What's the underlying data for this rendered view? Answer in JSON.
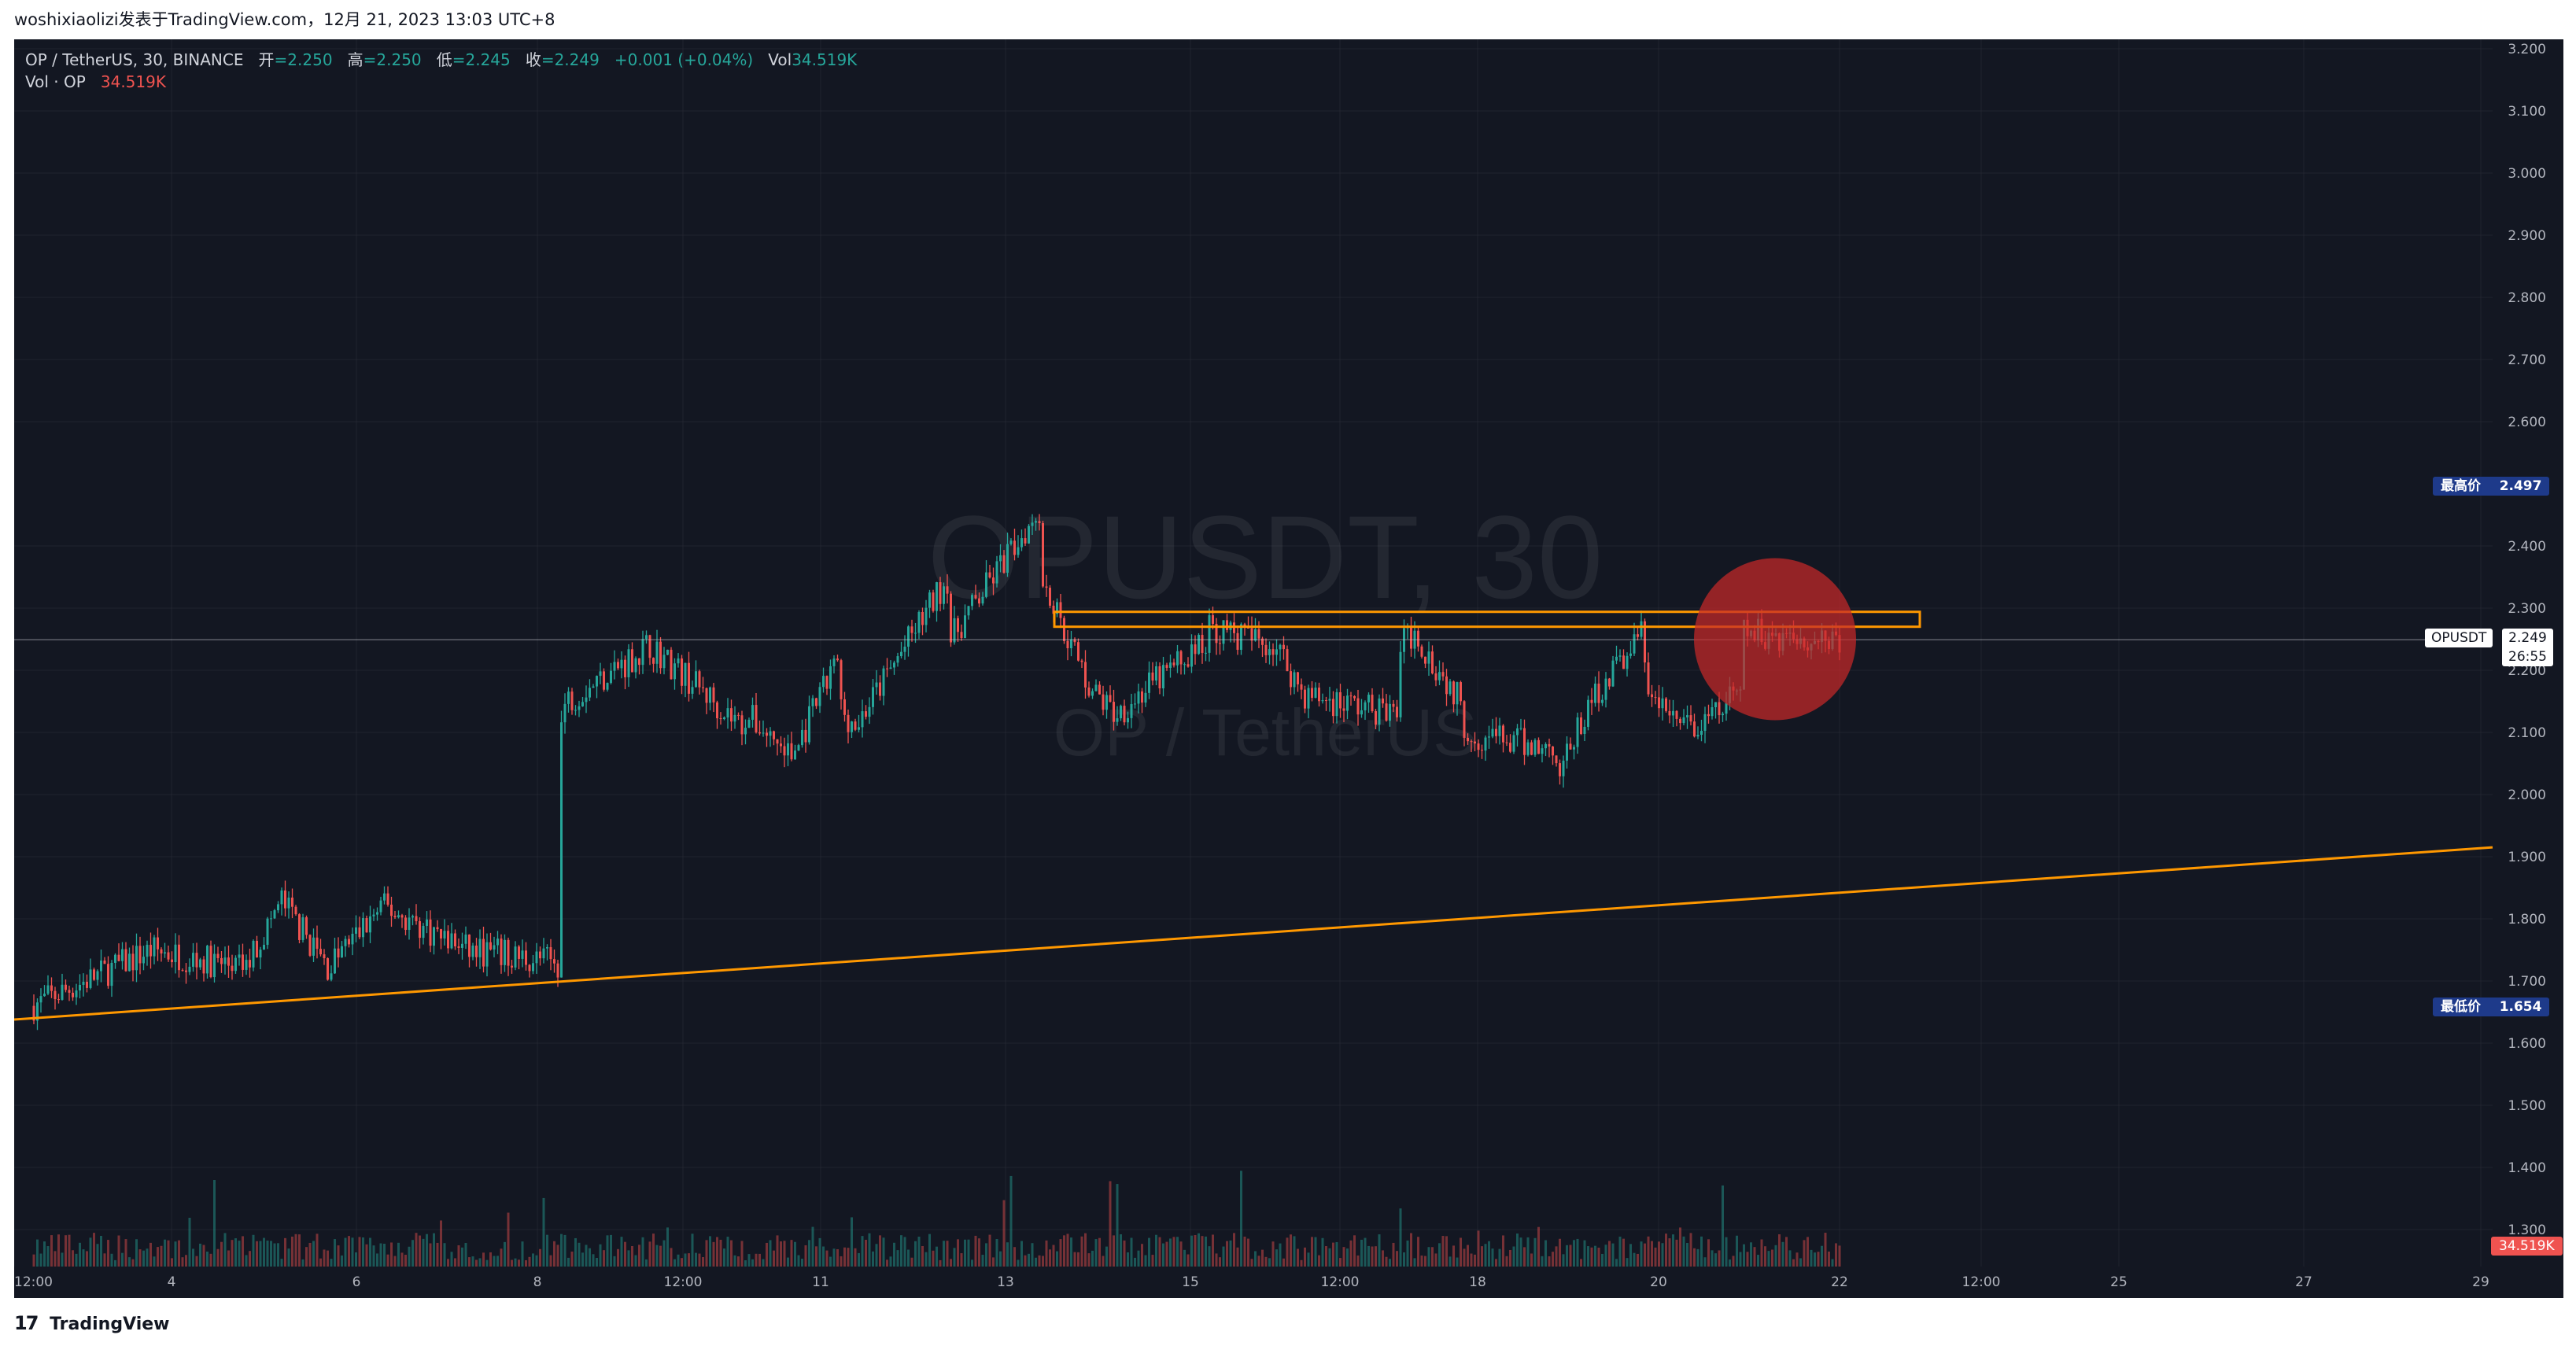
{
  "header": {
    "publisher": "woshixiaolizi发表于TradingView.com，12月 21, 2023 13:03 UTC+8"
  },
  "legend": {
    "symbol": "OP / TetherUS, 30, BINANCE",
    "open_label": "开",
    "open": "=2.250",
    "high_label": "高",
    "high": "=2.250",
    "low_label": "低",
    "low": "=2.245",
    "close_label": "收",
    "close": "=2.249",
    "change": "+0.001 (+0.04%)",
    "vol_label": "Vol",
    "vol": "34.519K",
    "vol_indicator": "Vol · OP",
    "vol_indicator_value": "34.519K"
  },
  "watermark": {
    "symbol": "OPUSDT, 30",
    "name": "OP / TetherUS"
  },
  "price_axis": {
    "ticks": [
      "3.200",
      "3.100",
      "3.000",
      "2.900",
      "2.800",
      "2.700",
      "2.600",
      "2.400",
      "2.300",
      "2.200",
      "2.100",
      "2.000",
      "1.900",
      "1.800",
      "1.700",
      "1.600",
      "1.500",
      "1.400",
      "1.300"
    ],
    "high_label": "最高价",
    "high_value": "2.497",
    "low_label": "最低价",
    "low_value": "1.654",
    "current_symbol": "OPUSDT",
    "current_price": "2.249",
    "countdown": "26:55",
    "volume_tag": "34.519K"
  },
  "time_axis": {
    "ticks": [
      "12:00",
      "4",
      "6",
      "8",
      "12:00",
      "11",
      "13",
      "15",
      "12:00",
      "18",
      "20",
      "22",
      "12:00",
      "25",
      "27",
      "29"
    ]
  },
  "footer": {
    "logo": "17",
    "brand": "TradingView"
  },
  "colors": {
    "background": "#131722",
    "up": "#26a69a",
    "down": "#ef5350",
    "drawing": "#ff9800",
    "highlight": "#c62828"
  },
  "chart_data": {
    "type": "candlestick",
    "symbol": "OP / TetherUS",
    "interval": "30",
    "exchange": "BINANCE",
    "ylim": [
      1.28,
      3.2
    ],
    "price_path": [
      {
        "x": "3 12:00",
        "y": 1.66
      },
      {
        "x": "4",
        "y": 1.75
      },
      {
        "x": "4 12:00",
        "y": 1.72
      },
      {
        "x": "5",
        "y": 1.83
      },
      {
        "x": "5 06:00",
        "y": 1.72
      },
      {
        "x": "6",
        "y": 1.74
      },
      {
        "x": "6 06:00",
        "y": 1.82
      },
      {
        "x": "7",
        "y": 1.75
      },
      {
        "x": "7 12:00",
        "y": 1.73
      },
      {
        "x": "8",
        "y": 1.76
      },
      {
        "x": "8 06:00",
        "y": 2.15
      },
      {
        "x": "9",
        "y": 2.24
      },
      {
        "x": "9 12:00",
        "y": 2.11
      },
      {
        "x": "10",
        "y": 2.13
      },
      {
        "x": "10 06:00",
        "y": 2.06
      },
      {
        "x": "10 12:00",
        "y": 2.22
      },
      {
        "x": "11",
        "y": 2.21
      },
      {
        "x": "11 06:00",
        "y": 2.11
      },
      {
        "x": "11 18:00",
        "y": 2.35
      },
      {
        "x": "12",
        "y": 2.24
      },
      {
        "x": "12 12:00",
        "y": 2.46
      },
      {
        "x": "13",
        "y": 2.28
      },
      {
        "x": "13 06:00",
        "y": 2.34
      },
      {
        "x": "13 12:00",
        "y": 2.17
      },
      {
        "x": "14",
        "y": 2.13
      },
      {
        "x": "14 12:00",
        "y": 2.25
      },
      {
        "x": "15",
        "y": 2.28
      },
      {
        "x": "15 12:00",
        "y": 2.24
      },
      {
        "x": "16",
        "y": 2.16
      },
      {
        "x": "16 12:00",
        "y": 2.13
      },
      {
        "x": "17",
        "y": 2.19
      },
      {
        "x": "17 06:00",
        "y": 2.26
      },
      {
        "x": "17 12:00",
        "y": 2.15
      },
      {
        "x": "18",
        "y": 2.1
      },
      {
        "x": "18 12:00",
        "y": 2.07
      },
      {
        "x": "19",
        "y": 2.0
      },
      {
        "x": "19 06:00",
        "y": 2.16
      },
      {
        "x": "19 12:00",
        "y": 2.26
      },
      {
        "x": "20",
        "y": 2.15
      },
      {
        "x": "20 06:00",
        "y": 2.1
      },
      {
        "x": "20 12:00",
        "y": 2.17
      },
      {
        "x": "21",
        "y": 2.26
      },
      {
        "x": "21 13:00",
        "y": 2.249
      }
    ],
    "current_price": 2.249,
    "highest": 2.497,
    "lowest": 1.654,
    "drawings": {
      "resistance_zone": [
        2.27,
        2.294
      ],
      "trendline": [
        {
          "x": "3 12:00",
          "y": 1.638
        },
        {
          "x": "29",
          "y": 1.915
        }
      ]
    }
  }
}
